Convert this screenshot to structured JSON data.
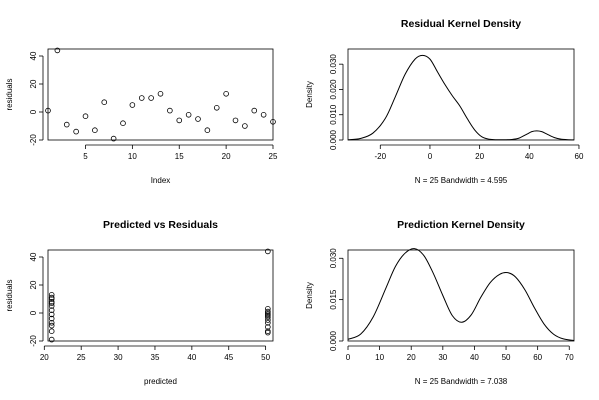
{
  "chart_data": [
    {
      "id": "residuals-index",
      "type": "scatter",
      "title": "",
      "xlabel": "Index",
      "ylabel": "residuals",
      "xlim": [
        1,
        25
      ],
      "ylim": [
        -20,
        45
      ],
      "xticks": [
        5,
        10,
        15,
        20,
        25
      ],
      "yticks": [
        -20,
        0,
        20,
        40
      ],
      "x": [
        1,
        2,
        3,
        4,
        5,
        6,
        7,
        8,
        9,
        10,
        11,
        12,
        13,
        14,
        15,
        16,
        17,
        18,
        19,
        20,
        21,
        22,
        23,
        24,
        25
      ],
      "y": [
        1,
        44,
        -9,
        -14,
        -3,
        -13,
        7,
        -19,
        -8,
        5,
        10,
        10,
        13,
        1,
        -6,
        -2,
        -5,
        -13,
        3,
        13,
        -6,
        -10,
        1,
        -2,
        -7
      ]
    },
    {
      "id": "residual-density",
      "type": "line",
      "title": "Residual Kernel Density",
      "xlabel": "N = 25   Bandwidth = 4.595",
      "ylabel": "Density",
      "xlim": [
        -33,
        58
      ],
      "ylim": [
        0,
        0.036
      ],
      "xticks": [
        -20,
        0,
        20,
        40,
        60
      ],
      "yticks": [
        0.0,
        0.01,
        0.02,
        0.03
      ],
      "ytick_labels": [
        "0.000",
        "0.010",
        "0.020",
        "0.030"
      ],
      "x": [
        -33,
        -28,
        -23,
        -18,
        -14,
        -10,
        -6,
        -3,
        0,
        3,
        6,
        9,
        12,
        15,
        18,
        21,
        24,
        27,
        30,
        33,
        36,
        39,
        41,
        43,
        45,
        47,
        50,
        53,
        58
      ],
      "y": [
        0.0001,
        0.0006,
        0.0027,
        0.0085,
        0.017,
        0.026,
        0.032,
        0.0335,
        0.032,
        0.027,
        0.022,
        0.0175,
        0.0135,
        0.0085,
        0.004,
        0.0012,
        0.0003,
        0.0001,
        0.0001,
        0.0002,
        0.0008,
        0.0023,
        0.0033,
        0.0036,
        0.0033,
        0.0024,
        0.001,
        0.0003,
        3e-05
      ]
    },
    {
      "id": "predicted-vs-residuals",
      "type": "scatter",
      "title": "Predicted vs Residuals",
      "xlabel": "predicted",
      "ylabel": "residuals",
      "xlim": [
        20.5,
        51
      ],
      "ylim": [
        -20,
        45
      ],
      "xticks": [
        20,
        25,
        30,
        35,
        40,
        45,
        50
      ],
      "yticks": [
        -20,
        0,
        20,
        40
      ],
      "x": [
        21,
        21,
        21,
        21,
        21,
        21,
        21,
        21,
        21,
        21,
        21,
        21,
        21,
        50.3,
        50.3,
        50.3,
        50.3,
        50.3,
        50.3,
        50.3,
        50.3,
        50.3,
        50.3,
        50.3,
        50.3
      ],
      "y": [
        13,
        10,
        7,
        5,
        2,
        -1,
        -4,
        -7,
        -9,
        -13,
        -19,
        11,
        8,
        44,
        3,
        1,
        -1,
        -2,
        -5,
        -7,
        -10,
        -13,
        -14,
        0,
        -3
      ]
    },
    {
      "id": "prediction-density",
      "type": "line",
      "title": "Prediction Kernel Density",
      "xlabel": "N = 25   Bandwidth = 7.038",
      "ylabel": "Density",
      "xlim": [
        0,
        71.5
      ],
      "ylim": [
        0,
        0.033
      ],
      "xticks": [
        0,
        10,
        20,
        30,
        40,
        50,
        60,
        70
      ],
      "yticks": [
        0.0,
        0.015,
        0.03
      ],
      "ytick_labels": [
        "0.000",
        "0.015",
        "0.030"
      ],
      "x": [
        0,
        4,
        8,
        12,
        15,
        18,
        21,
        24,
        27,
        30,
        33,
        36,
        39,
        42,
        45,
        48,
        50.5,
        53,
        56,
        59,
        62,
        65,
        68,
        71.5
      ],
      "y": [
        0.0006,
        0.0025,
        0.0088,
        0.0192,
        0.027,
        0.0318,
        0.0335,
        0.031,
        0.0245,
        0.0165,
        0.0092,
        0.0068,
        0.0095,
        0.0158,
        0.0212,
        0.0242,
        0.0248,
        0.0232,
        0.0185,
        0.012,
        0.0062,
        0.0025,
        0.0008,
        0.0002
      ]
    }
  ]
}
